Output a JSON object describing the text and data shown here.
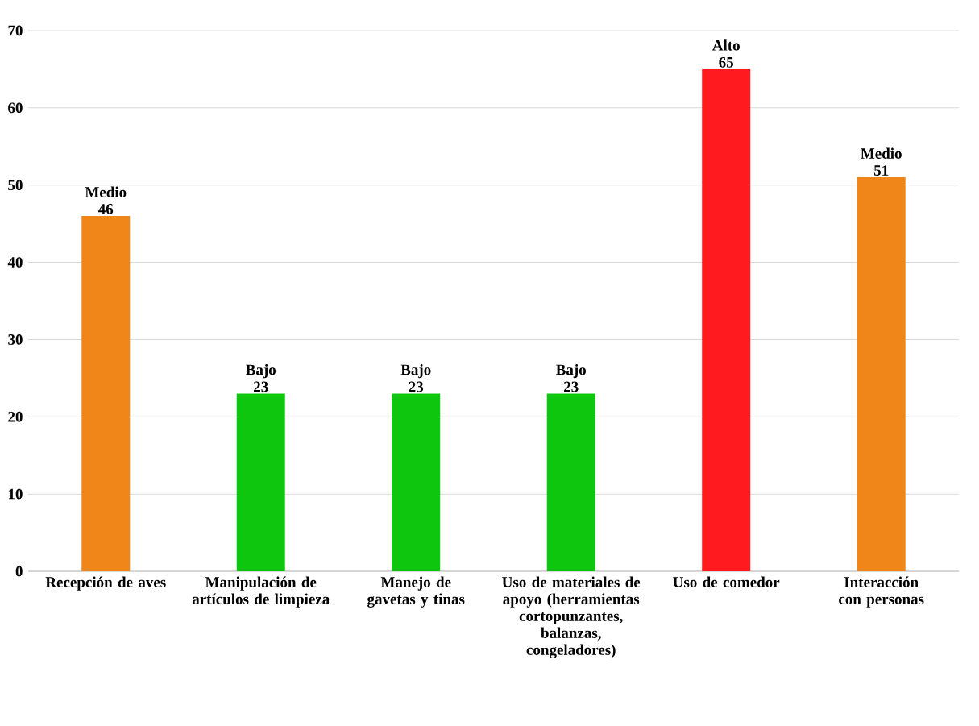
{
  "chart_data": {
    "type": "bar",
    "categories": [
      "Recepción de aves",
      "Manipulación de artículos de limpieza",
      "Manejo de gavetas y tinas",
      "Uso de materiales de apoyo (herramientas cortopunzantes, balanzas, congeladores)",
      "Uso de comedor",
      "Interacción con personas"
    ],
    "values": [
      46,
      23,
      23,
      23,
      65,
      51
    ],
    "colors": [
      "#f0861a",
      "#0fc60f",
      "#0fc60f",
      "#0fc60f",
      "#fe1a1e",
      "#f0861a"
    ],
    "value_labels": [
      "Medio 46",
      "Bajo 23",
      "Bajo 23",
      "Bajo 23",
      "Alto 65",
      "Medio 51"
    ],
    "ylim": [
      0,
      70
    ],
    "yticks": [
      0,
      10,
      20,
      30,
      40,
      50,
      60,
      70
    ],
    "grid": "y"
  }
}
